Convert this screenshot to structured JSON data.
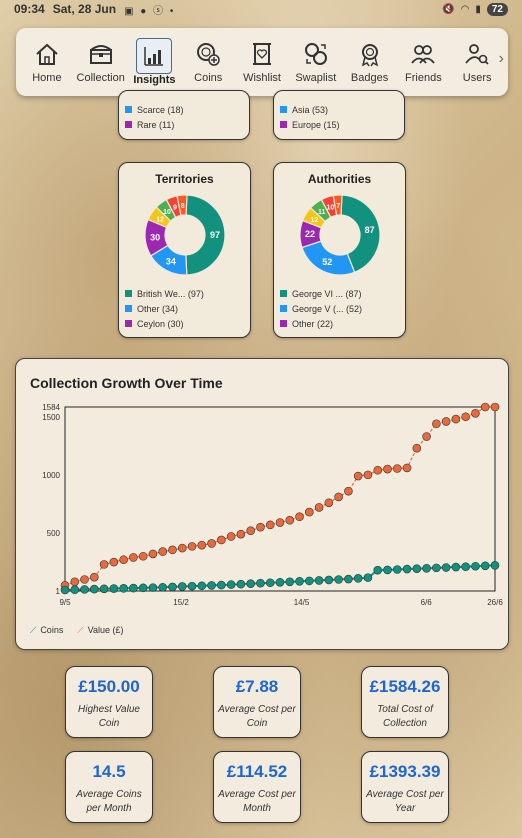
{
  "status_bar": {
    "time": "09:34",
    "date": "Sat, 28 Jun",
    "battery": "72"
  },
  "nav": {
    "items": [
      {
        "label": "Home",
        "icon": "home-icon"
      },
      {
        "label": "Collection",
        "icon": "chest-icon"
      },
      {
        "label": "Insights",
        "icon": "chart-icon",
        "active": true
      },
      {
        "label": "Coins",
        "icon": "coins-add-icon"
      },
      {
        "label": "Wishlist",
        "icon": "scroll-heart-icon"
      },
      {
        "label": "Swaplist",
        "icon": "swap-coins-icon"
      },
      {
        "label": "Badges",
        "icon": "medal-icon"
      },
      {
        "label": "Friends",
        "icon": "friends-icon"
      },
      {
        "label": "Users",
        "icon": "user-search-icon"
      }
    ]
  },
  "top_cards": {
    "left": {
      "items": [
        {
          "label": "Scarce (18)",
          "color": "#2196f3"
        },
        {
          "label": "Rare (11)",
          "color": "#9c27b0"
        }
      ]
    },
    "right": {
      "items": [
        {
          "label": "Asia (53)",
          "color": "#2196f3"
        },
        {
          "label": "Europe (15)",
          "color": "#9c27b0"
        }
      ]
    }
  },
  "territories": {
    "title": "Territories",
    "segments": [
      {
        "value": 97,
        "color": "#13917f"
      },
      {
        "value": 34,
        "color": "#2196f3"
      },
      {
        "value": 30,
        "color": "#9c27b0"
      },
      {
        "value": 12,
        "color": "#f5c518"
      },
      {
        "value": 10,
        "color": "#4caf50"
      },
      {
        "value": 9,
        "color": "#f44336"
      },
      {
        "value": 8,
        "color": "#ff5722"
      }
    ],
    "legend": [
      {
        "label": "British We... (97)",
        "color": "#13917f"
      },
      {
        "label": "Other (34)",
        "color": "#2196f3"
      },
      {
        "label": "Ceylon (30)",
        "color": "#9c27b0"
      }
    ]
  },
  "authorities": {
    "title": "Authorities",
    "segments": [
      {
        "value": 87,
        "color": "#13917f"
      },
      {
        "value": 52,
        "color": "#2196f3"
      },
      {
        "value": 22,
        "color": "#9c27b0"
      },
      {
        "value": 12,
        "color": "#f5c518"
      },
      {
        "value": 11,
        "color": "#4caf50"
      },
      {
        "value": 10,
        "color": "#f44336"
      },
      {
        "value": 7,
        "color": "#ff5722"
      }
    ],
    "legend": [
      {
        "label": "George VI ... (87)",
        "color": "#13917f"
      },
      {
        "label": "George V (... (52)",
        "color": "#2196f3"
      },
      {
        "label": "Other (22)",
        "color": "#9c27b0"
      }
    ]
  },
  "chart_data": {
    "type": "line",
    "title": "Collection Growth Over Time",
    "x_ticks": [
      "9/5",
      "15/2",
      "14/5",
      "6/6",
      "26/6"
    ],
    "y_ticks": [
      1,
      500,
      1000,
      1500,
      1584
    ],
    "ylim": [
      1,
      1584
    ],
    "legend_position": "bottom-left",
    "series": [
      {
        "name": "Coins",
        "color": "#13917f",
        "values": [
          10,
          12,
          15,
          18,
          20,
          22,
          24,
          26,
          28,
          30,
          33,
          36,
          40,
          43,
          46,
          49,
          52,
          56,
          60,
          64,
          68,
          72,
          76,
          80,
          84,
          88,
          92,
          96,
          100,
          104,
          110,
          116,
          180,
          182,
          186,
          190,
          193,
          196,
          200,
          203,
          207,
          210,
          214,
          218,
          222
        ]
      },
      {
        "name": "Value (£)",
        "color": "#e86a3c",
        "values": [
          50,
          80,
          100,
          120,
          230,
          250,
          270,
          290,
          300,
          320,
          340,
          355,
          370,
          385,
          395,
          410,
          440,
          470,
          490,
          520,
          550,
          570,
          590,
          610,
          640,
          680,
          720,
          760,
          810,
          860,
          990,
          1000,
          1040,
          1050,
          1055,
          1060,
          1230,
          1330,
          1440,
          1460,
          1480,
          1500,
          1530,
          1584,
          1584
        ]
      }
    ]
  },
  "stats": [
    {
      "value": "£150.00",
      "label": "Highest Value Coin"
    },
    {
      "value": "£7.88",
      "label": "Average Cost per Coin"
    },
    {
      "value": "£1584.26",
      "label": "Total Cost of Collection"
    },
    {
      "value": "14.5",
      "label": "Average Coins per Month"
    },
    {
      "value": "£114.52",
      "label": "Average Cost per Month"
    },
    {
      "value": "£1393.39",
      "label": "Average Cost per Year"
    }
  ]
}
